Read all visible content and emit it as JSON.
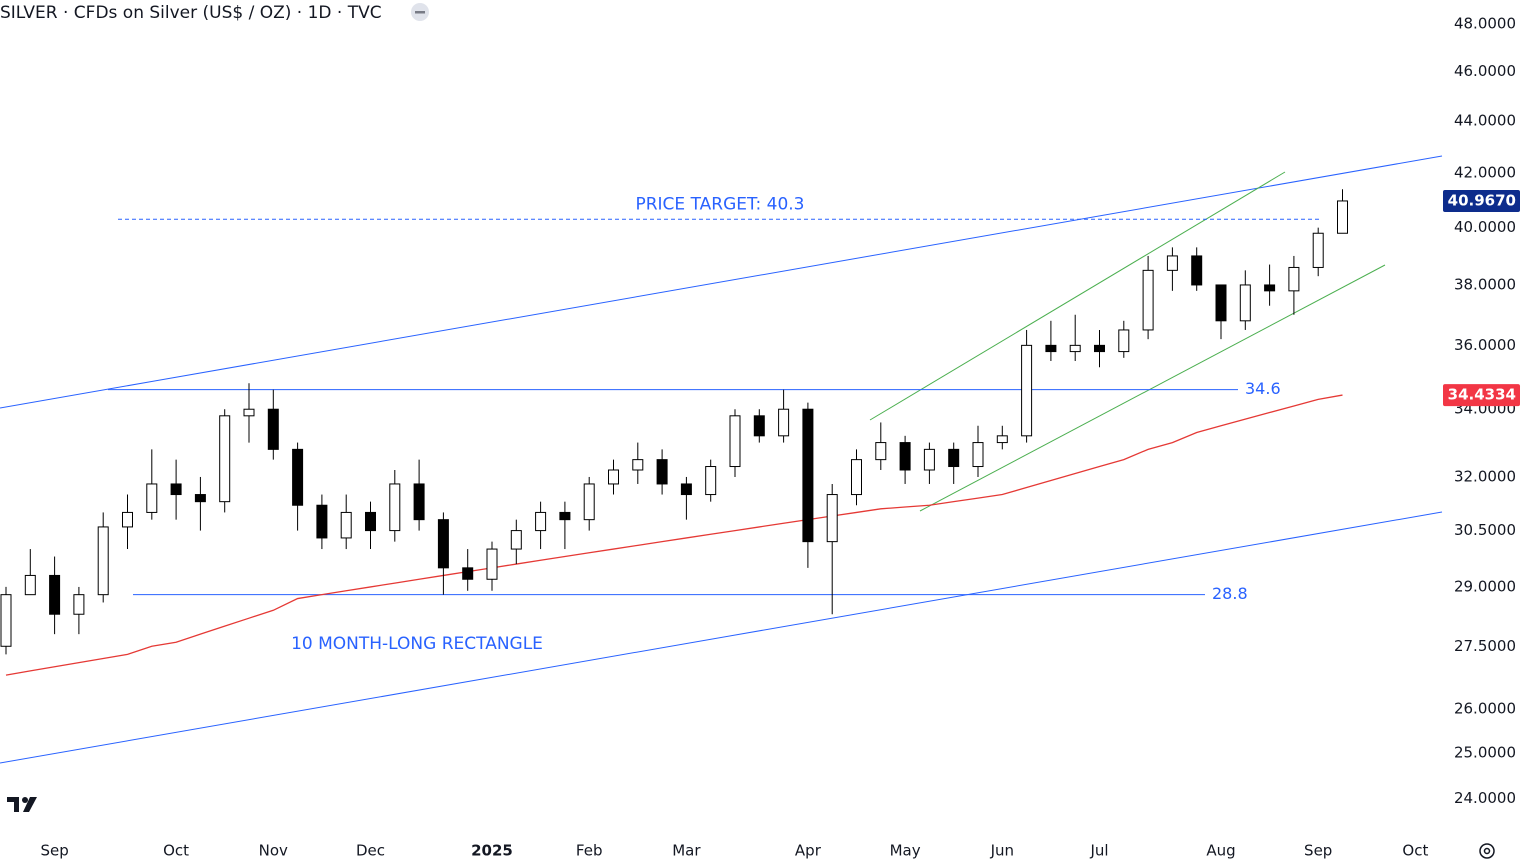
{
  "chart_data": {
    "type": "candlestick",
    "title": "SILVER · CFDs on Silver (US$ / OZ) · 1D · TVC",
    "categories": [
      null,
      null,
      "Sep",
      null,
      null,
      null,
      null,
      "Oct",
      null,
      null,
      null,
      "Nov",
      null,
      null,
      null,
      "Dec",
      null,
      null,
      null,
      null,
      "2025",
      null,
      null,
      null,
      "Feb",
      null,
      null,
      null,
      "Mar",
      null,
      null,
      null,
      null,
      "Apr",
      null,
      null,
      null,
      "May",
      null,
      null,
      null,
      "Jun",
      null,
      null,
      null,
      "Jul",
      null,
      null,
      null,
      null,
      "Aug",
      null,
      null,
      null,
      "Sep",
      null,
      null,
      null,
      "Oct"
    ],
    "open": [
      27.5,
      28.8,
      29.3,
      28.3,
      28.8,
      30.6,
      31,
      31.8,
      31.5,
      31.3,
      33.8,
      34,
      32.8,
      31.2,
      30.3,
      31,
      30.5,
      31.8,
      30.8,
      29.5,
      29.2,
      30,
      30.5,
      31,
      30.8,
      31.8,
      32.2,
      32.5,
      31.8,
      31.5,
      32.3,
      33.8,
      33.2,
      34,
      30.2,
      31.5,
      32.5,
      33,
      32.2,
      32.8,
      32.3,
      33,
      33.2,
      36,
      35.8,
      36,
      35.8,
      36.5,
      38.5,
      39,
      38,
      36.8,
      38,
      37.8,
      38.6,
      39.8,
      null,
      null,
      null
    ],
    "high": [
      29,
      30,
      29.8,
      29,
      31,
      31.5,
      32.8,
      32.5,
      32,
      34,
      34.8,
      34.6,
      33,
      31.5,
      31.5,
      31.3,
      32.2,
      32.5,
      31,
      30,
      30.2,
      30.8,
      31.3,
      31.3,
      32,
      32.5,
      33,
      32.8,
      32,
      32.5,
      34,
      34,
      34.6,
      34.2,
      31.8,
      32.8,
      33.6,
      33.2,
      33,
      33,
      33.5,
      33.5,
      36.5,
      36.8,
      37,
      36.5,
      36.8,
      39,
      39.3,
      39.3,
      38,
      38.5,
      38.7,
      39,
      40,
      41.4,
      null,
      null,
      null
    ],
    "low": [
      27.3,
      28.8,
      27.8,
      27.8,
      28.6,
      30,
      30.8,
      30.8,
      30.5,
      31,
      33,
      32.5,
      30.5,
      30,
      30,
      30,
      30.2,
      30.5,
      28.8,
      28.9,
      28.9,
      29.6,
      30,
      30,
      30.5,
      31.5,
      31.8,
      31.5,
      30.8,
      31.3,
      32,
      33,
      33,
      29.5,
      28.3,
      31.2,
      32.2,
      31.8,
      31.8,
      31.8,
      32,
      32.8,
      33,
      35.5,
      35.5,
      35.3,
      35.6,
      36.2,
      37.8,
      37.8,
      36.2,
      36.5,
      37.3,
      37,
      38.3,
      39.8,
      null,
      null,
      null
    ],
    "close": [
      28.8,
      29.3,
      28.3,
      28.8,
      30.6,
      31,
      31.8,
      31.5,
      31.3,
      33.8,
      34,
      32.8,
      31.2,
      30.3,
      31,
      30.5,
      31.8,
      30.8,
      29.5,
      29.2,
      30,
      30.5,
      31,
      30.8,
      31.8,
      32.2,
      32.5,
      31.8,
      31.5,
      32.3,
      33.8,
      33.2,
      34,
      30.2,
      31.5,
      32.5,
      33,
      32.2,
      32.8,
      32.3,
      33,
      33.2,
      36,
      35.8,
      36,
      35.8,
      36.5,
      38.5,
      39,
      38,
      36.8,
      38,
      37.8,
      38.6,
      39.8,
      40.967,
      null,
      null,
      null
    ],
    "up_color": "#ffffff",
    "down_color": "#000000",
    "wick_color": "#000000",
    "moving_average": {
      "color": "#e53935",
      "values": [
        26.8,
        26.9,
        27.0,
        27.1,
        27.2,
        27.3,
        27.5,
        27.6,
        27.8,
        28.0,
        28.2,
        28.4,
        28.7,
        28.8,
        28.9,
        29.0,
        29.1,
        29.2,
        29.3,
        29.4,
        29.5,
        29.6,
        29.7,
        29.8,
        29.9,
        30.0,
        30.1,
        30.2,
        30.3,
        30.4,
        30.5,
        30.6,
        30.7,
        30.8,
        30.9,
        31.0,
        31.1,
        31.15,
        31.2,
        31.3,
        31.4,
        31.5,
        31.7,
        31.9,
        32.1,
        32.3,
        32.5,
        32.8,
        33.0,
        33.3,
        33.5,
        33.7,
        33.9,
        34.1,
        34.3,
        34.4334,
        null,
        null,
        null
      ]
    },
    "ylim": [
      23.33,
      49.04
    ],
    "log_scale": true,
    "yticks": [
      {
        "value": 24,
        "label": "24.0000"
      },
      {
        "value": 25,
        "label": "25.0000"
      },
      {
        "value": 26,
        "label": "26.0000"
      },
      {
        "value": 27.5,
        "label": "27.5000"
      },
      {
        "value": 29,
        "label": "29.0000"
      },
      {
        "value": 30.5,
        "label": "30.5000"
      },
      {
        "value": 32,
        "label": "32.0000"
      },
      {
        "value": 34,
        "label": "34.0000"
      },
      {
        "value": 36,
        "label": "36.0000"
      },
      {
        "value": 38,
        "label": "38.0000"
      },
      {
        "value": 40,
        "label": "40.0000"
      },
      {
        "value": 42,
        "label": "42.0000"
      },
      {
        "value": 44,
        "label": "44.0000"
      },
      {
        "value": 46,
        "label": "46.0000"
      },
      {
        "value": 48,
        "label": "48.0000"
      }
    ],
    "last_price": {
      "value": 40.967,
      "label": "40.9670",
      "color": "#0d2c8c"
    },
    "ma_price": {
      "value": 34.4334,
      "label": "34.4334",
      "color": "#f23645"
    },
    "target": {
      "text": "PRICE TARGET: 40.3",
      "value": 40.3,
      "color": "#2962ff"
    },
    "levels": [
      {
        "value": 34.6,
        "label": "34.6"
      },
      {
        "value": 28.8,
        "label": "28.8"
      }
    ],
    "level_color": "#2962ff",
    "pattern_label": "10 MONTH-LONG RECTANGLE"
  }
}
